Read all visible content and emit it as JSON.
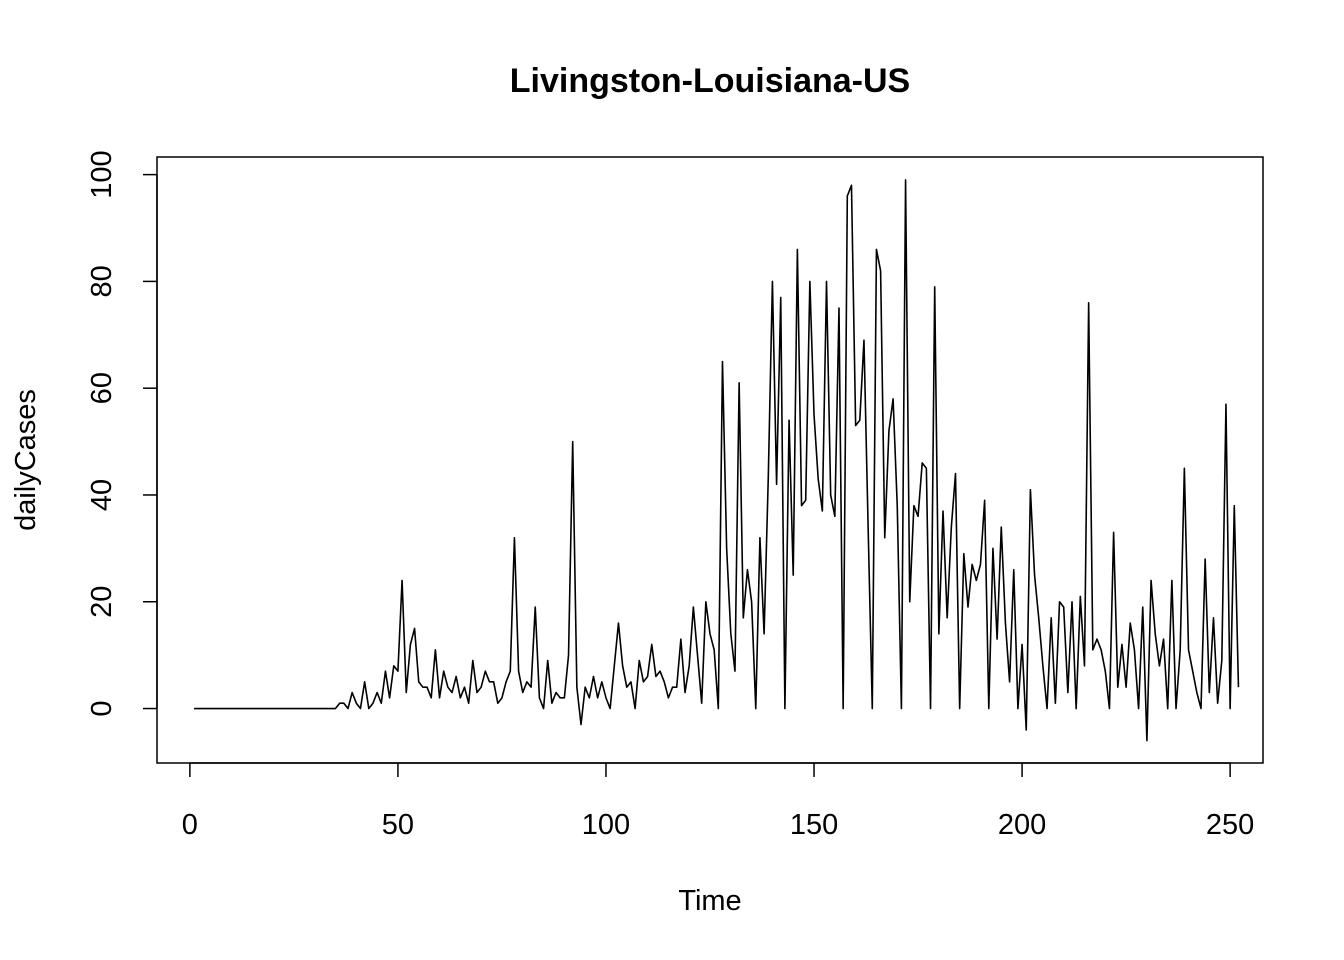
{
  "chart_data": {
    "type": "line",
    "title": "Livingston-Louisiana-US",
    "xlabel": "Time",
    "ylabel": "dailyCases",
    "xlim": [
      -7.9,
      257.9
    ],
    "ylim": [
      -10.2,
      103.3
    ],
    "xticks": [
      0,
      50,
      100,
      150,
      200,
      250
    ],
    "yticks": [
      0,
      20,
      40,
      60,
      80,
      100
    ],
    "grid": false,
    "legend": "none",
    "line_color": "#000000",
    "series": [
      {
        "values": [
          0,
          0,
          0,
          0,
          0,
          0,
          0,
          0,
          0,
          0,
          0,
          0,
          0,
          0,
          0,
          0,
          0,
          0,
          0,
          0,
          0,
          0,
          0,
          0,
          0,
          0,
          0,
          0,
          0,
          0,
          0,
          0,
          0,
          0,
          0,
          1,
          1,
          0,
          3,
          1,
          0,
          5,
          0,
          1,
          3,
          1,
          7,
          2,
          8,
          7,
          24,
          3,
          12,
          15,
          5,
          4,
          4,
          2,
          11,
          2,
          7,
          4,
          3,
          6,
          2,
          4,
          1,
          9,
          3,
          4,
          7,
          5,
          5,
          1,
          2,
          5,
          7,
          32,
          7,
          3,
          5,
          4,
          19,
          2,
          0,
          9,
          1,
          3,
          2,
          2,
          10,
          50,
          4,
          -3,
          4,
          2,
          6,
          2,
          5,
          2,
          0,
          8,
          16,
          8,
          4,
          5,
          0,
          9,
          5,
          6,
          12,
          6,
          7,
          5,
          2,
          4,
          4,
          13,
          3,
          8,
          19,
          10,
          1,
          20,
          14,
          11,
          0,
          65,
          30,
          14,
          7,
          61,
          17,
          26,
          20,
          0,
          32,
          14,
          43,
          80,
          42,
          77,
          0,
          54,
          25,
          86,
          38,
          39,
          80,
          55,
          43,
          37,
          80,
          40,
          36,
          75,
          0,
          96,
          98,
          53,
          54,
          69,
          34,
          0,
          86,
          82,
          32,
          52,
          58,
          38,
          0,
          99,
          20,
          38,
          36,
          46,
          45,
          0,
          79,
          14,
          37,
          17,
          34,
          44,
          0,
          29,
          19,
          27,
          24,
          27,
          39,
          0,
          30,
          13,
          34,
          16,
          5,
          26,
          0,
          12,
          -4,
          41,
          25,
          17,
          8,
          0,
          17,
          1,
          20,
          19,
          3,
          20,
          0,
          21,
          8,
          76,
          11,
          13,
          11,
          7,
          0,
          33,
          4,
          12,
          4,
          16,
          11,
          0,
          19,
          -6,
          24,
          14,
          8,
          13,
          0,
          24,
          0,
          11,
          45,
          11,
          7,
          3,
          0,
          28,
          3,
          17,
          1,
          9,
          57,
          0,
          38,
          4
        ]
      }
    ]
  }
}
